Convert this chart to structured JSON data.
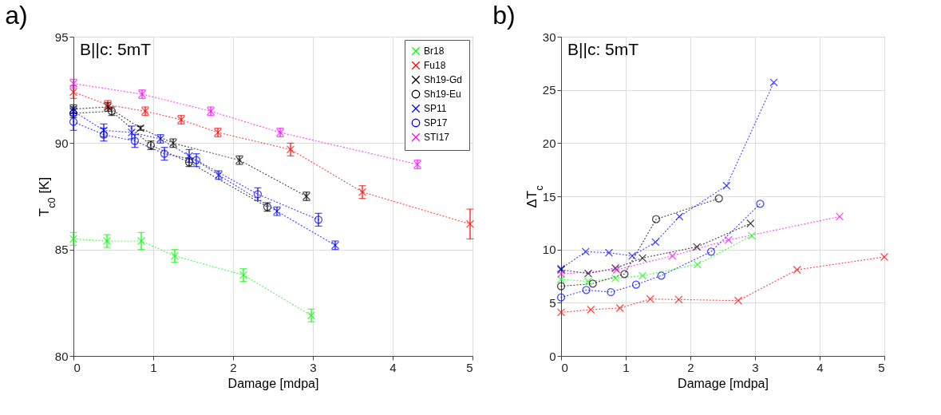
{
  "chart_data": [
    {
      "type": "line",
      "title": "a)",
      "xlabel": "Damage [mdpa]",
      "ylabel": "T$_{c0}$ [K]",
      "annotations": [
        "B||c: 5mT"
      ],
      "xlim": [
        0,
        5
      ],
      "ylim": [
        80,
        95
      ],
      "xticks": [
        0,
        1,
        2,
        3,
        4,
        5
      ],
      "yticks": [
        80,
        85,
        90,
        95
      ],
      "grid": true,
      "legend": "top right",
      "line_style": "dotted",
      "series": [
        {
          "name": "Br18",
          "color": "#00ff00",
          "marker": "cross",
          "x": [
            0,
            0.42,
            0.85,
            1.27,
            2.13,
            2.98
          ],
          "values": [
            85.5,
            85.4,
            85.4,
            84.7,
            83.8,
            81.9
          ],
          "errors": [
            0.3,
            0.3,
            0.4,
            0.3,
            0.3,
            0.3
          ]
        },
        {
          "name": "Fu18",
          "color": "#ff0000",
          "marker": "cross",
          "x": [
            0,
            0.43,
            0.9,
            1.35,
            1.81,
            2.72,
            3.62,
            4.97
          ],
          "values": [
            92.4,
            91.8,
            91.5,
            91.1,
            90.5,
            89.7,
            87.7,
            86.2
          ],
          "errors": [
            0.3,
            0.2,
            0.2,
            0.2,
            0.2,
            0.3,
            0.3,
            0.7
          ]
        },
        {
          "name": "Sh19-Gd",
          "color": "#000000",
          "marker": "cross",
          "x": [
            0,
            0.43,
            0.84,
            1.25,
            2.08,
            2.92
          ],
          "values": [
            91.6,
            91.7,
            90.7,
            90.0,
            89.2,
            87.5
          ],
          "errors": [
            0.2,
            0.2,
            0.1,
            0.2,
            0.2,
            0.2
          ]
        },
        {
          "name": "Sh19-Eu",
          "color": "#000000",
          "marker": "circle",
          "x": [
            0,
            0.48,
            0.97,
            1.45,
            2.43
          ],
          "values": [
            91.4,
            91.5,
            89.9,
            89.1,
            87.0
          ],
          "errors": [
            0.2,
            0.2,
            0.2,
            0.2,
            0.2
          ]
        },
        {
          "name": "SP11",
          "color": "#0000ff",
          "marker": "cross",
          "x": [
            0,
            0.38,
            0.73,
            1.09,
            1.45,
            1.82,
            2.55,
            3.28
          ],
          "values": [
            91.5,
            90.6,
            90.5,
            90.2,
            89.4,
            88.5,
            86.8,
            85.2
          ],
          "errors": [
            0.2,
            0.3,
            0.3,
            0.2,
            0.3,
            0.2,
            0.2,
            0.2
          ]
        },
        {
          "name": "SP17",
          "color": "#0000ff",
          "marker": "circle",
          "x": [
            0,
            0.38,
            0.77,
            1.14,
            1.54,
            2.31,
            3.07
          ],
          "values": [
            91.0,
            90.4,
            90.1,
            89.5,
            89.2,
            87.6,
            86.4
          ],
          "errors": [
            0.4,
            0.3,
            0.3,
            0.3,
            0.3,
            0.3,
            0.3
          ]
        },
        {
          "name": "STI17",
          "color": "#ff00ff",
          "marker": "cross",
          "x": [
            0,
            0.86,
            1.72,
            2.59,
            4.31
          ],
          "values": [
            92.8,
            92.3,
            91.5,
            90.5,
            89.0
          ],
          "errors": [
            0.2,
            0.2,
            0.2,
            0.2,
            0.2
          ]
        }
      ]
    },
    {
      "type": "line",
      "title": "b)",
      "xlabel": "Damage [mdpa]",
      "ylabel": "ΔT$_{c}$",
      "annotations": [
        "B||c: 5mT"
      ],
      "xlim": [
        0,
        5
      ],
      "ylim": [
        0,
        30
      ],
      "xticks": [
        0,
        1,
        2,
        3,
        4,
        5
      ],
      "yticks": [
        0,
        5,
        10,
        15,
        20,
        25,
        30
      ],
      "grid": true,
      "line_style": "dotted",
      "series": [
        {
          "color": "#00ff00",
          "marker": "cross",
          "x": [
            0,
            0.42,
            0.84,
            1.26,
            2.11,
            2.95
          ],
          "values": [
            7.2,
            7.0,
            7.3,
            7.55,
            8.6,
            11.3
          ]
        },
        {
          "color": "#ff0000",
          "marker": "cross",
          "x": [
            0,
            0.46,
            0.91,
            1.38,
            1.82,
            2.74,
            3.65,
            5.0
          ],
          "values": [
            4.1,
            4.35,
            4.5,
            5.35,
            5.3,
            5.2,
            8.1,
            9.3
          ]
        },
        {
          "color": "#000000",
          "marker": "cross",
          "x": [
            0,
            0.42,
            0.84,
            1.26,
            2.1,
            2.93
          ],
          "values": [
            8.1,
            7.75,
            8.25,
            9.2,
            10.25,
            12.45
          ]
        },
        {
          "color": "#000000",
          "marker": "circle",
          "x": [
            0,
            0.49,
            0.98,
            1.47,
            2.44
          ],
          "values": [
            6.55,
            6.8,
            7.7,
            12.85,
            14.8
          ]
        },
        {
          "color": "#0000ff",
          "marker": "cross",
          "x": [
            0,
            0.38,
            0.74,
            1.1,
            1.46,
            1.83,
            2.56,
            3.29
          ],
          "values": [
            8.2,
            9.8,
            9.7,
            9.4,
            10.7,
            13.1,
            16.0,
            25.7
          ]
        },
        {
          "color": "#0000ff",
          "marker": "circle",
          "x": [
            0,
            0.39,
            0.77,
            1.16,
            1.55,
            2.32,
            3.08
          ],
          "values": [
            5.5,
            6.2,
            6.0,
            6.7,
            7.55,
            9.8,
            14.3
          ]
        },
        {
          "color": "#ff00ff",
          "marker": "cross",
          "x": [
            0,
            0.86,
            1.72,
            2.59,
            4.31
          ],
          "values": [
            7.7,
            8.1,
            9.4,
            10.9,
            13.1
          ]
        }
      ]
    }
  ]
}
